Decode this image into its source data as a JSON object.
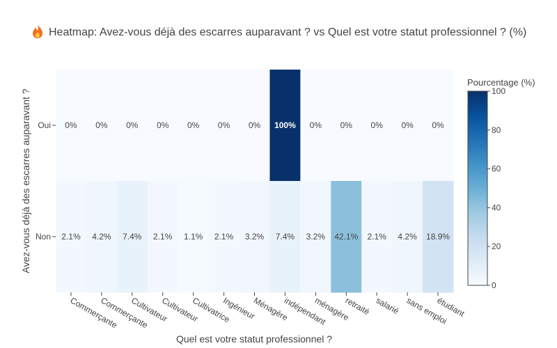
{
  "chart_data": {
    "type": "heatmap",
    "title_icon": "fire-icon",
    "title": "Heatmap: Avez-vous déjà des escarres auparavant ? vs Quel est votre statut professionnel ? (%)",
    "xlabel": "Quel est votre statut professionnel ?",
    "ylabel": "Avez-vous déjà des escarres auparavant ?",
    "x_categories": [
      "Commerçante",
      "Commerçante",
      "Cultivateur",
      "Cultivateur",
      "Cultivatrice",
      "Ingénieur",
      "Ménagère",
      "indépendant",
      "ménagère",
      "retraité",
      "salarié",
      "sans emploi",
      "étudiant"
    ],
    "y_categories": [
      "Oui",
      "Non"
    ],
    "values": [
      [
        0,
        0,
        0,
        0,
        0,
        0,
        0,
        100,
        0,
        0,
        0,
        0,
        0
      ],
      [
        2.1,
        4.2,
        7.4,
        2.1,
        1.1,
        2.1,
        3.2,
        7.4,
        3.2,
        42.1,
        2.1,
        4.2,
        18.9
      ]
    ],
    "cell_labels": [
      [
        "0%",
        "0%",
        "0%",
        "0%",
        "0%",
        "0%",
        "0%",
        "100%",
        "0%",
        "0%",
        "0%",
        "0%",
        "0%"
      ],
      [
        "2.1%",
        "4.2%",
        "7.4%",
        "2.1%",
        "1.1%",
        "2.1%",
        "3.2%",
        "7.4%",
        "3.2%",
        "42.1%",
        "2.1%",
        "4.2%",
        "18.9%"
      ]
    ],
    "colorbar": {
      "title": "Pourcentage (%)",
      "range": [
        0,
        100
      ],
      "ticks": [
        0,
        20,
        40,
        60,
        80,
        100
      ],
      "tick_labels": [
        "0",
        "20",
        "40",
        "60",
        "80",
        "100"
      ]
    },
    "colorscale": [
      "#f7fbff",
      "#deebf7",
      "#c6dbef",
      "#9ecae1",
      "#6baed6",
      "#4292c6",
      "#2171b5",
      "#08519c",
      "#08306b"
    ],
    "grid": false
  }
}
